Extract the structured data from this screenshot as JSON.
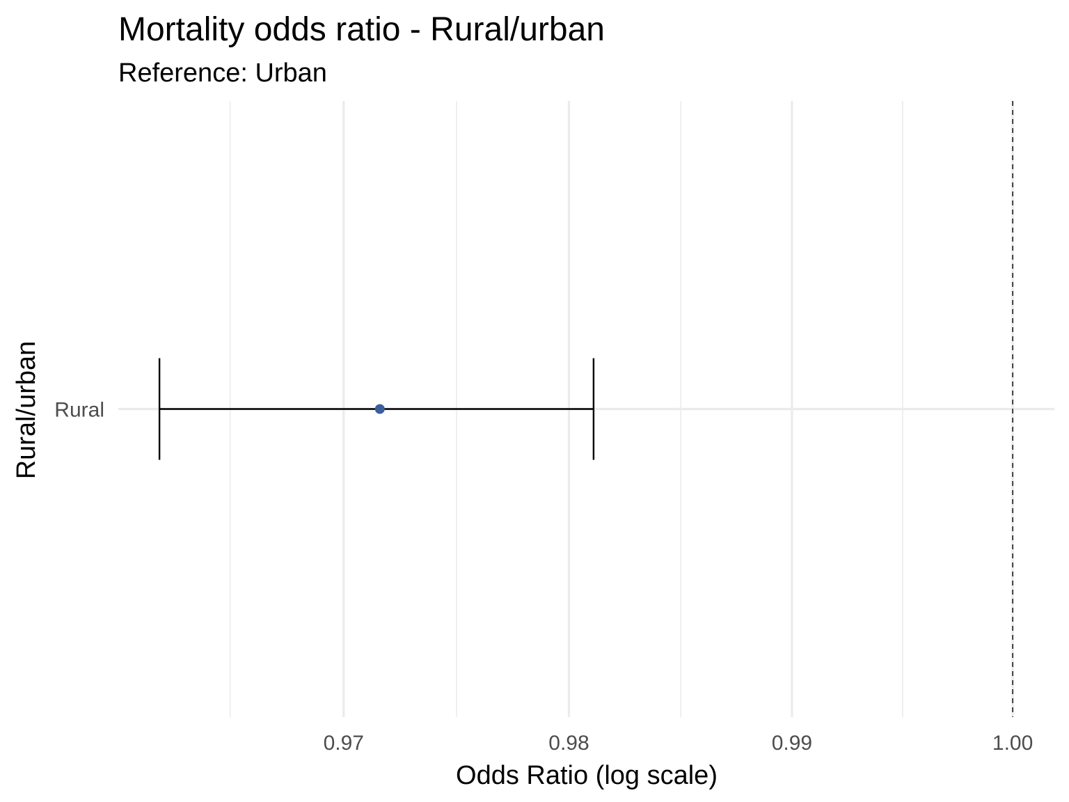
{
  "chart_data": {
    "type": "forest",
    "title": "Mortality odds ratio - Rural/urban",
    "subtitle": "Reference: Urban",
    "xlabel": "Odds Ratio (log scale)",
    "ylabel": "Rural/urban",
    "x_scale": "log",
    "xlim": [
      0.9601,
      1.0019
    ],
    "x_ticks": [
      0.97,
      0.98,
      0.99,
      1.0
    ],
    "x_tick_labels": [
      "0.97",
      "0.98",
      "0.99",
      "1.00"
    ],
    "x_minor_ticks": [
      0.965,
      0.975,
      0.985,
      0.995
    ],
    "categories": [
      "Rural"
    ],
    "points": [
      {
        "category": "Rural",
        "estimate": 0.9716,
        "ci_lower": 0.9619,
        "ci_upper": 0.9811
      }
    ],
    "reference_line": 1.0,
    "grid": true,
    "colors": {
      "point": "#3a5f9a",
      "error_bar": "#000000",
      "grid": "#ebebeb",
      "reference_line": "#333333"
    }
  }
}
